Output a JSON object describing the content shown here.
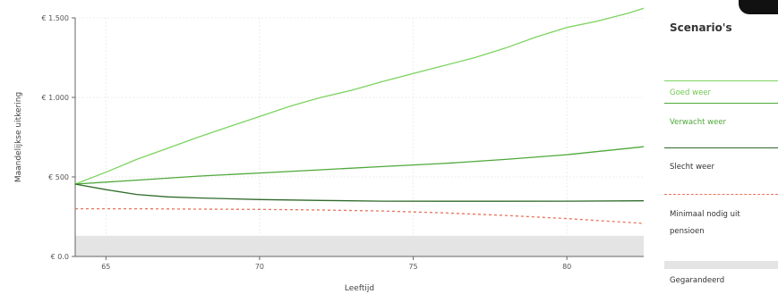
{
  "chart_data": {
    "type": "line",
    "xlabel": "Leeftijd",
    "ylabel": "Maandelijkse uitkering",
    "xlim": [
      64,
      82.5
    ],
    "ylim": [
      0,
      1500
    ],
    "x_ticks": [
      65,
      70,
      75,
      80
    ],
    "x_tick_labels": [
      "65",
      "70",
      "75",
      "80"
    ],
    "y_ticks": [
      0,
      500,
      1000,
      1500
    ],
    "y_tick_labels": [
      "€ 0.0",
      "€ 500",
      "€ 1.000",
      "€ 1.500"
    ],
    "grid": true,
    "legend_placement": "right",
    "series": [
      {
        "name": "Goed weer",
        "color": "#7cd35f",
        "style": "solid",
        "x": [
          64,
          65,
          66,
          67,
          68,
          69,
          70,
          71,
          72,
          73,
          74,
          75,
          76,
          77,
          78,
          79,
          80,
          81,
          82,
          82.5
        ],
        "values": [
          455,
          530,
          610,
          680,
          750,
          815,
          880,
          945,
          1000,
          1045,
          1100,
          1150,
          1200,
          1250,
          1310,
          1380,
          1440,
          1480,
          1530,
          1560
        ]
      },
      {
        "name": "Verwacht weer",
        "color": "#4ea83a",
        "style": "solid",
        "x": [
          64,
          66,
          68,
          70,
          72,
          74,
          76,
          78,
          80,
          82.5
        ],
        "values": [
          455,
          480,
          505,
          525,
          545,
          565,
          585,
          610,
          640,
          690
        ]
      },
      {
        "name": "Slecht weer",
        "color": "#2f6a2a",
        "style": "solid",
        "x": [
          64,
          65,
          66,
          67,
          68,
          70,
          72,
          74,
          76,
          78,
          80,
          82.5
        ],
        "values": [
          455,
          420,
          390,
          375,
          368,
          358,
          352,
          348,
          347,
          347,
          348,
          350
        ]
      },
      {
        "name": "Minimaal nodig uit pensioen",
        "color": "#e8735a",
        "style": "dashed",
        "x": [
          64,
          66,
          68,
          70,
          72,
          74,
          76,
          78,
          80,
          82.5
        ],
        "values": [
          300,
          300,
          298,
          296,
          292,
          286,
          274,
          258,
          238,
          208
        ]
      }
    ],
    "band": {
      "name": "Gegarandeerd",
      "color": "#e4e4e4",
      "range": [
        0,
        130
      ]
    },
    "legend_title": "Scenario's"
  },
  "legend": {
    "title": "Scenario's",
    "items": [
      {
        "label": "Goed weer",
        "color": "#7cd35f",
        "label_color": "#6fc84f",
        "kind": "line"
      },
      {
        "label": "Verwacht weer",
        "color": "#4ea83a",
        "label_color": "#4ea83a",
        "kind": "line"
      },
      {
        "label": "Slecht weer",
        "color": "#2f6a2a",
        "label_color": "#333333",
        "kind": "line"
      },
      {
        "label": "Minimaal nodig uit pensioen",
        "color": "#e8735a",
        "label_color": "#333333",
        "kind": "dashed"
      },
      {
        "label": "Gegarandeerd",
        "color": "#e4e4e4",
        "label_color": "#333333",
        "kind": "band"
      }
    ]
  }
}
